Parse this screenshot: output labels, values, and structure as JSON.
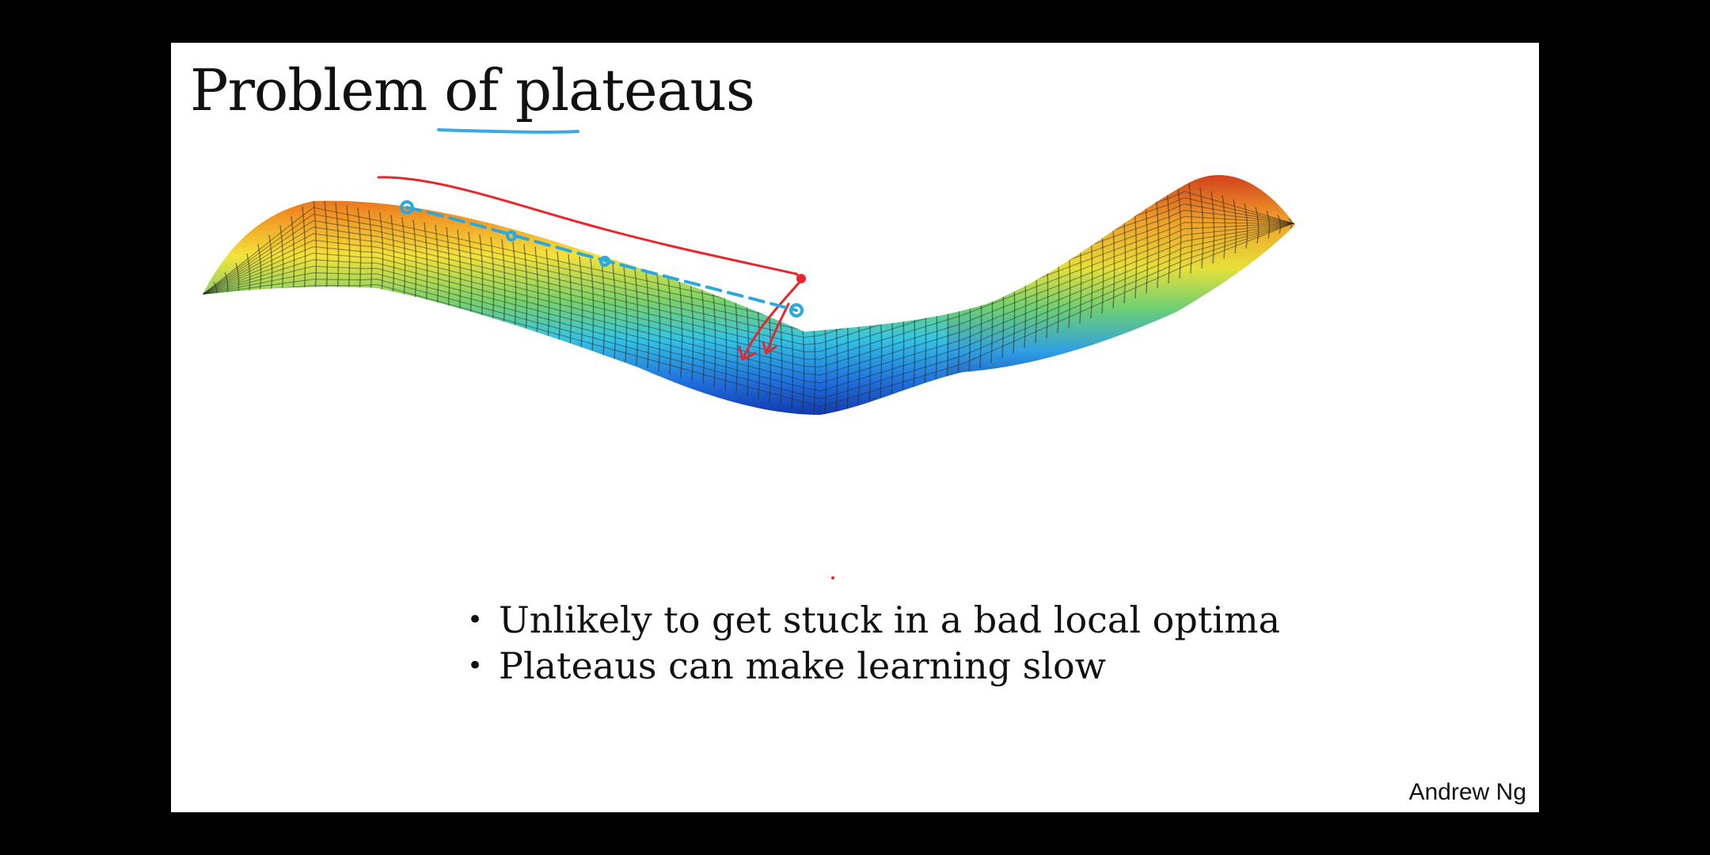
{
  "slide": {
    "title": "Problem of plateaus",
    "bullets": [
      "Unlikely to get stuck in a bad local optima",
      "Plateaus can make learning slow"
    ],
    "credit": "Andrew Ng"
  },
  "colors": {
    "background": "#000000",
    "slide_background": "#ffffff",
    "underline_annotation": "#3aa8e6",
    "red_annotation": "#e8262b",
    "blue_annotation": "#2aa8e0",
    "surface_colormap": [
      "#0b1f9a",
      "#1f78e0",
      "#32c8e6",
      "#7ad66a",
      "#f2e63a",
      "#f49a22",
      "#d22a1c"
    ]
  },
  "figure": {
    "description_icon": "3d-surface-plateau"
  }
}
